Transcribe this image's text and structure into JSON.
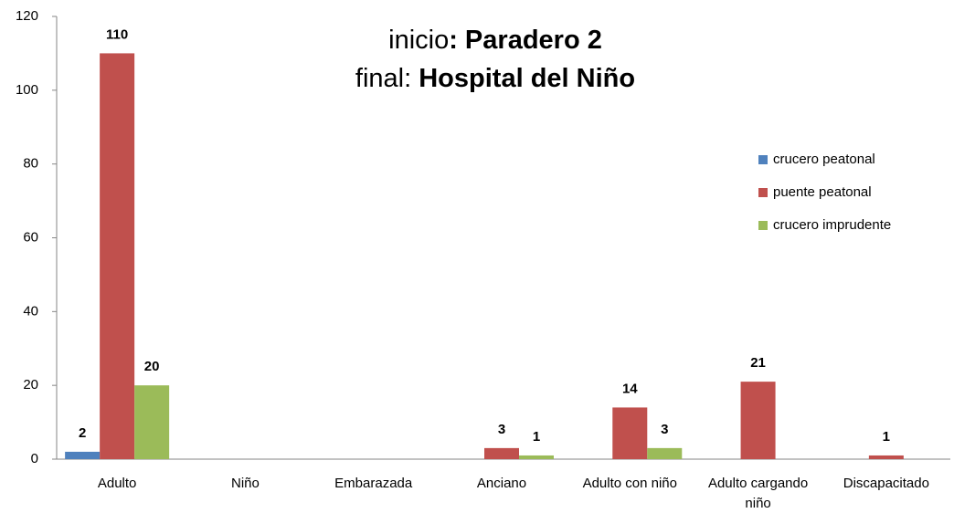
{
  "chart_data": {
    "type": "bar",
    "title": [
      [
        {
          "text": "inicio",
          "bold": false
        },
        {
          "text": ": Paradero 2",
          "bold": true
        }
      ],
      [
        {
          "text": "final: ",
          "bold": false
        },
        {
          "text": "Hospital del Niño",
          "bold": true
        }
      ]
    ],
    "categories": [
      "Adulto",
      "Niño",
      "Embarazada",
      "Anciano",
      "Adulto con niño",
      [
        "Adulto cargando",
        "niño"
      ],
      "Discapacitado"
    ],
    "series": [
      {
        "name": "crucero peatonal",
        "color": "#4f81bd",
        "values": [
          2,
          null,
          null,
          null,
          null,
          null,
          null
        ]
      },
      {
        "name": "puente peatonal",
        "color": "#c0504d",
        "values": [
          110,
          null,
          null,
          3,
          14,
          21,
          1
        ]
      },
      {
        "name": "crucero imprudente",
        "color": "#9bbb59",
        "values": [
          20,
          null,
          null,
          1,
          3,
          null,
          null
        ]
      }
    ],
    "ylim": [
      0,
      120
    ],
    "yticks": [
      0,
      20,
      40,
      60,
      80,
      100,
      120
    ],
    "legend": "right"
  }
}
